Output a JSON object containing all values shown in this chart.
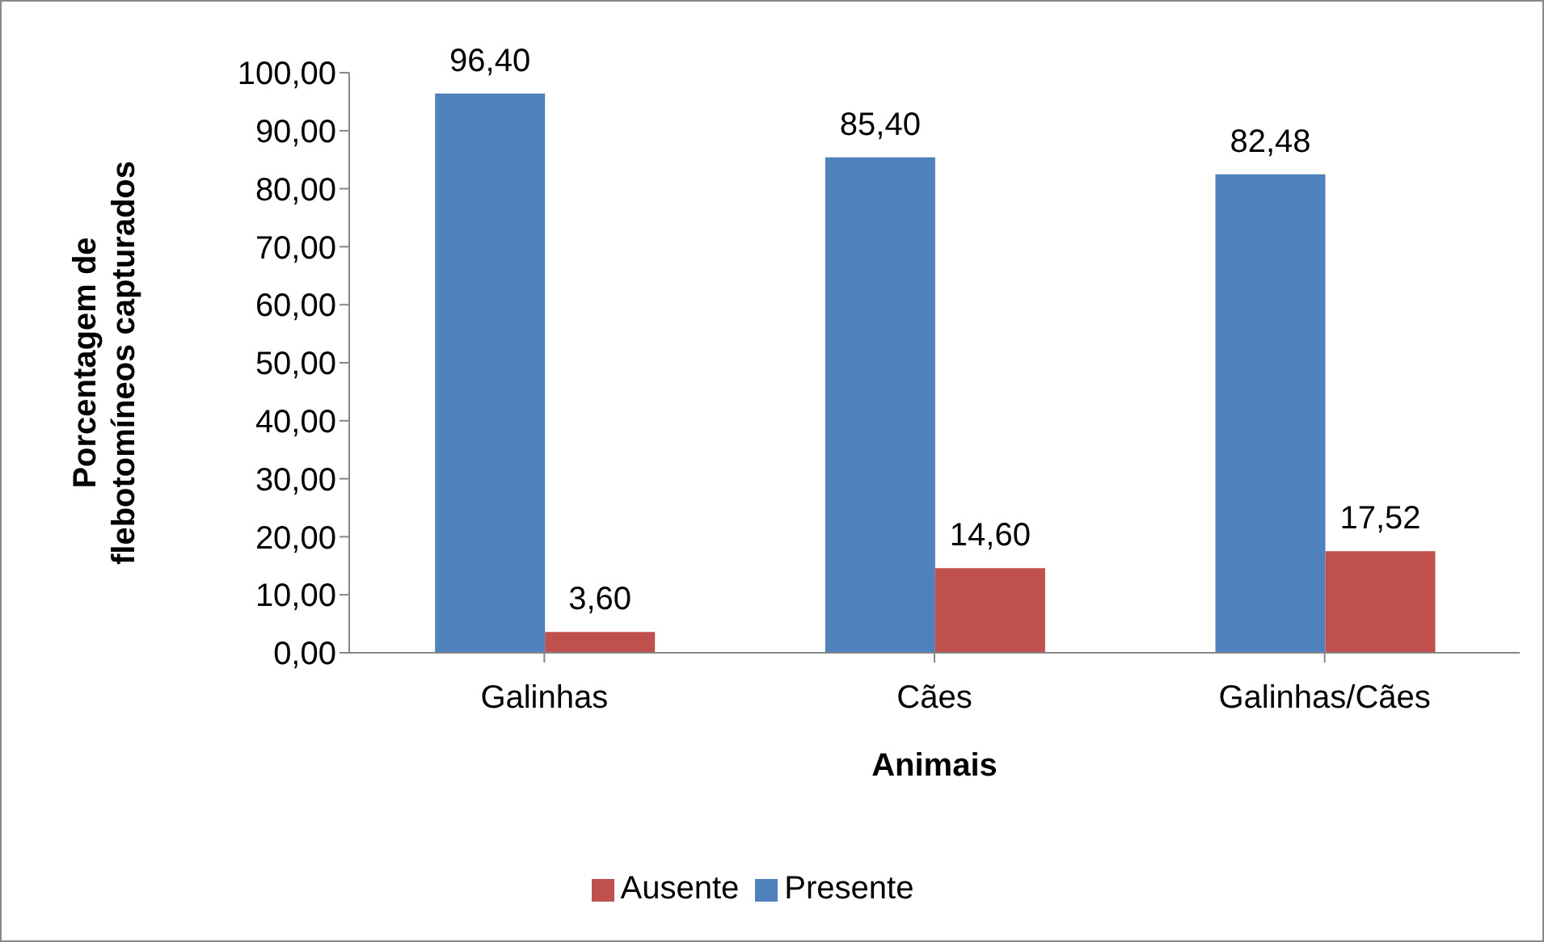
{
  "chart_data": {
    "type": "bar",
    "xlabel": "Animais",
    "ylabel": "Porcentagem de flebotomíneos capturados",
    "categories": [
      "Galinhas",
      "Cães",
      "Galinhas/Cães"
    ],
    "series": [
      {
        "name": "Presente",
        "color": "#4f81bd",
        "values": [
          96.4,
          85.4,
          82.48
        ],
        "value_labels": [
          "96,40",
          "85,40",
          "82,48"
        ]
      },
      {
        "name": "Ausente",
        "color": "#c0504d",
        "values": [
          3.6,
          14.6,
          17.52
        ],
        "value_labels": [
          "3,60",
          "14,60",
          "17,52"
        ]
      }
    ],
    "ylim": [
      0,
      100
    ],
    "yticks": [
      {
        "value": 0,
        "label": "0,00"
      },
      {
        "value": 10,
        "label": "10,00"
      },
      {
        "value": 20,
        "label": "20,00"
      },
      {
        "value": 30,
        "label": "30,00"
      },
      {
        "value": 40,
        "label": "40,00"
      },
      {
        "value": 50,
        "label": "50,00"
      },
      {
        "value": 60,
        "label": "60,00"
      },
      {
        "value": 70,
        "label": "70,00"
      },
      {
        "value": 80,
        "label": "80,00"
      },
      {
        "value": 90,
        "label": "90,00"
      },
      {
        "value": 100,
        "label": "100,00"
      }
    ],
    "grid": false,
    "legend": "bottom"
  }
}
